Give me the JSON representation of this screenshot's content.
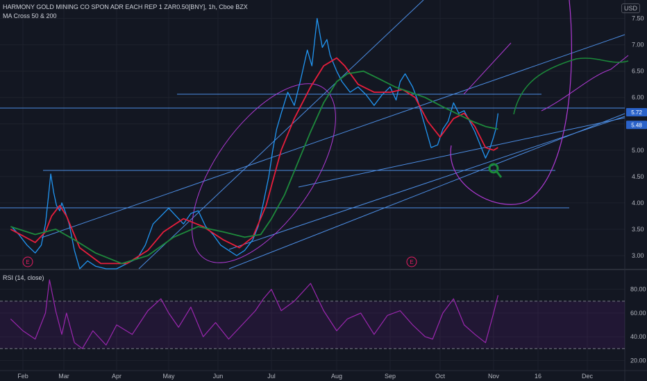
{
  "header": {
    "title": "HARMONY GOLD MINING CO SPON ADR EACH REP 1 ZAR0.50[BNY], 1h, Cboe BZX",
    "indicator_main": "MA Cross 50 & 200",
    "indicator_sub": "RSI (14, close)",
    "currency": "USD"
  },
  "colors": {
    "background": "#131722",
    "price": "#2196f3",
    "ma50": "#e91e3c",
    "ma200": "#1e8a3c",
    "rsi": "#9c27b0",
    "drawing_blue": "#4d8fe6",
    "drawing_magenta": "#b13ad6",
    "drawing_green": "#1b8a3a"
  },
  "price_labels": [
    {
      "value": "5.72",
      "bg": "#2a62c9"
    },
    {
      "value": "5.48",
      "bg": "#2a62c9"
    }
  ],
  "earnings_marker": "E",
  "chart_data": [
    {
      "type": "line",
      "panel": "price",
      "title": "HARMONY GOLD MINING CO SPON ADR EACH REP 1 ZAR0.50[BNY], 1h, Cboe BZX",
      "x_tick_labels": [
        "Feb",
        "Mar",
        "Apr",
        "May",
        "Jun",
        "Jul",
        "Aug",
        "Sep",
        "Oct",
        "Nov",
        "16",
        "Dec"
      ],
      "y_ticks": [
        "3.00",
        "3.50",
        "4.00",
        "4.50",
        "5.00",
        "5.50",
        "6.00",
        "6.50",
        "7.00",
        "7.50"
      ],
      "ylim": [
        2.75,
        7.85
      ],
      "log_scale": false,
      "grid": true,
      "x_unit": "month position (Feb=0)",
      "series": [
        {
          "role": "price",
          "color": "#2196f3",
          "points": [
            [
              -0.28,
              3.55
            ],
            [
              -0.1,
              3.4
            ],
            [
              0.1,
              3.2
            ],
            [
              0.3,
              3.05
            ],
            [
              0.45,
              3.2
            ],
            [
              0.55,
              3.6
            ],
            [
              0.62,
              4.1
            ],
            [
              0.68,
              4.55
            ],
            [
              0.75,
              4.2
            ],
            [
              0.82,
              3.95
            ],
            [
              0.9,
              3.85
            ],
            [
              0.95,
              4.0
            ],
            [
              1.02,
              3.85
            ],
            [
              1.1,
              3.6
            ],
            [
              1.2,
              3.1
            ],
            [
              1.3,
              2.75
            ],
            [
              1.45,
              2.9
            ],
            [
              1.6,
              2.8
            ],
            [
              1.8,
              2.75
            ],
            [
              2.0,
              2.75
            ],
            [
              2.2,
              2.85
            ],
            [
              2.4,
              2.95
            ],
            [
              2.55,
              3.2
            ],
            [
              2.7,
              3.6
            ],
            [
              2.85,
              3.75
            ],
            [
              3.0,
              3.9
            ],
            [
              3.15,
              3.75
            ],
            [
              3.3,
              3.6
            ],
            [
              3.45,
              3.8
            ],
            [
              3.6,
              3.85
            ],
            [
              3.75,
              3.55
            ],
            [
              3.9,
              3.4
            ],
            [
              4.05,
              3.2
            ],
            [
              4.2,
              3.1
            ],
            [
              4.35,
              3.0
            ],
            [
              4.5,
              3.1
            ],
            [
              4.65,
              3.3
            ],
            [
              4.75,
              3.55
            ],
            [
              4.85,
              4.0
            ],
            [
              4.95,
              4.5
            ],
            [
              5.02,
              5.0
            ],
            [
              5.08,
              5.4
            ],
            [
              5.15,
              5.7
            ],
            [
              5.25,
              6.1
            ],
            [
              5.35,
              5.85
            ],
            [
              5.45,
              6.35
            ],
            [
              5.55,
              6.9
            ],
            [
              5.62,
              6.6
            ],
            [
              5.7,
              7.5
            ],
            [
              5.78,
              6.95
            ],
            [
              5.85,
              7.1
            ],
            [
              5.9,
              6.8
            ],
            [
              6.0,
              6.5
            ],
            [
              6.1,
              6.3
            ],
            [
              6.25,
              6.1
            ],
            [
              6.4,
              6.2
            ],
            [
              6.55,
              6.05
            ],
            [
              6.7,
              5.85
            ],
            [
              6.85,
              6.05
            ],
            [
              7.0,
              6.2
            ],
            [
              7.12,
              5.95
            ],
            [
              7.2,
              6.3
            ],
            [
              7.3,
              6.45
            ],
            [
              7.45,
              6.2
            ],
            [
              7.55,
              5.95
            ],
            [
              7.7,
              5.45
            ],
            [
              7.82,
              5.05
            ],
            [
              7.95,
              5.1
            ],
            [
              8.05,
              5.4
            ],
            [
              8.15,
              5.55
            ],
            [
              8.25,
              5.9
            ],
            [
              8.35,
              5.7
            ],
            [
              8.45,
              5.75
            ],
            [
              8.55,
              5.55
            ],
            [
              8.65,
              5.35
            ],
            [
              8.75,
              5.1
            ],
            [
              8.85,
              4.85
            ],
            [
              8.92,
              5.0
            ],
            [
              9.0,
              5.25
            ],
            [
              9.05,
              5.4
            ],
            [
              9.1,
              5.7
            ]
          ]
        },
        {
          "role": "MA 50",
          "color": "#e91e3c",
          "points": [
            [
              -0.3,
              3.5
            ],
            [
              0.3,
              3.25
            ],
            [
              0.55,
              3.45
            ],
            [
              0.7,
              3.75
            ],
            [
              0.9,
              3.95
            ],
            [
              1.05,
              3.75
            ],
            [
              1.3,
              3.15
            ],
            [
              1.7,
              2.85
            ],
            [
              2.2,
              2.85
            ],
            [
              2.6,
              3.1
            ],
            [
              2.9,
              3.45
            ],
            [
              3.3,
              3.7
            ],
            [
              3.7,
              3.55
            ],
            [
              4.1,
              3.3
            ],
            [
              4.4,
              3.15
            ],
            [
              4.65,
              3.35
            ],
            [
              4.9,
              3.95
            ],
            [
              5.15,
              5.0
            ],
            [
              5.35,
              5.6
            ],
            [
              5.6,
              6.2
            ],
            [
              5.8,
              6.6
            ],
            [
              6.0,
              6.75
            ],
            [
              6.15,
              6.6
            ],
            [
              6.4,
              6.25
            ],
            [
              6.7,
              6.1
            ],
            [
              7.0,
              6.1
            ],
            [
              7.25,
              6.15
            ],
            [
              7.5,
              6.0
            ],
            [
              7.75,
              5.55
            ],
            [
              8.0,
              5.25
            ],
            [
              8.25,
              5.6
            ],
            [
              8.45,
              5.7
            ],
            [
              8.65,
              5.45
            ],
            [
              8.85,
              5.05
            ],
            [
              9.0,
              5.0
            ],
            [
              9.1,
              5.05
            ]
          ]
        },
        {
          "role": "MA 200",
          "color": "#1e8a3c",
          "points": [
            [
              -0.3,
              3.55
            ],
            [
              0.3,
              3.4
            ],
            [
              0.8,
              3.5
            ],
            [
              1.2,
              3.3
            ],
            [
              1.6,
              3.05
            ],
            [
              2.1,
              2.85
            ],
            [
              2.6,
              3.0
            ],
            [
              3.1,
              3.35
            ],
            [
              3.6,
              3.55
            ],
            [
              4.1,
              3.45
            ],
            [
              4.5,
              3.35
            ],
            [
              4.8,
              3.4
            ],
            [
              5.0,
              3.7
            ],
            [
              5.2,
              4.15
            ],
            [
              5.4,
              4.75
            ],
            [
              5.6,
              5.35
            ],
            [
              5.8,
              5.9
            ],
            [
              6.0,
              6.3
            ],
            [
              6.2,
              6.45
            ],
            [
              6.5,
              6.5
            ],
            [
              6.8,
              6.35
            ],
            [
              7.1,
              6.2
            ],
            [
              7.4,
              6.1
            ],
            [
              7.7,
              6.0
            ],
            [
              8.0,
              5.85
            ],
            [
              8.3,
              5.7
            ],
            [
              8.6,
              5.55
            ],
            [
              8.85,
              5.45
            ],
            [
              9.1,
              5.4
            ]
          ]
        }
      ]
    },
    {
      "type": "line",
      "panel": "rsi",
      "title": "RSI (14, close)",
      "y_ticks": [
        "20.00",
        "40.00",
        "60.00",
        "80.00"
      ],
      "ylim": [
        12,
        95
      ],
      "overbought": 70,
      "oversold": 30,
      "series": [
        {
          "role": "RSI",
          "color": "#9c27b0",
          "points": [
            [
              -0.3,
              55
            ],
            [
              0.0,
              45
            ],
            [
              0.3,
              38
            ],
            [
              0.55,
              60
            ],
            [
              0.65,
              88
            ],
            [
              0.8,
              62
            ],
            [
              0.95,
              42
            ],
            [
              1.05,
              60
            ],
            [
              1.2,
              35
            ],
            [
              1.35,
              30
            ],
            [
              1.55,
              45
            ],
            [
              1.8,
              33
            ],
            [
              2.0,
              50
            ],
            [
              2.3,
              42
            ],
            [
              2.6,
              62
            ],
            [
              2.85,
              72
            ],
            [
              3.0,
              60
            ],
            [
              3.2,
              48
            ],
            [
              3.45,
              65
            ],
            [
              3.7,
              40
            ],
            [
              3.95,
              52
            ],
            [
              4.2,
              38
            ],
            [
              4.45,
              50
            ],
            [
              4.7,
              62
            ],
            [
              4.85,
              72
            ],
            [
              5.0,
              80
            ],
            [
              5.15,
              62
            ],
            [
              5.35,
              70
            ],
            [
              5.6,
              85
            ],
            [
              5.8,
              62
            ],
            [
              6.0,
              45
            ],
            [
              6.2,
              55
            ],
            [
              6.45,
              60
            ],
            [
              6.7,
              42
            ],
            [
              6.95,
              58
            ],
            [
              7.2,
              62
            ],
            [
              7.45,
              50
            ],
            [
              7.7,
              40
            ],
            [
              7.85,
              38
            ],
            [
              8.05,
              60
            ],
            [
              8.25,
              72
            ],
            [
              8.45,
              50
            ],
            [
              8.65,
              42
            ],
            [
              8.85,
              35
            ],
            [
              9.0,
              60
            ],
            [
              9.1,
              75
            ]
          ]
        }
      ]
    }
  ]
}
